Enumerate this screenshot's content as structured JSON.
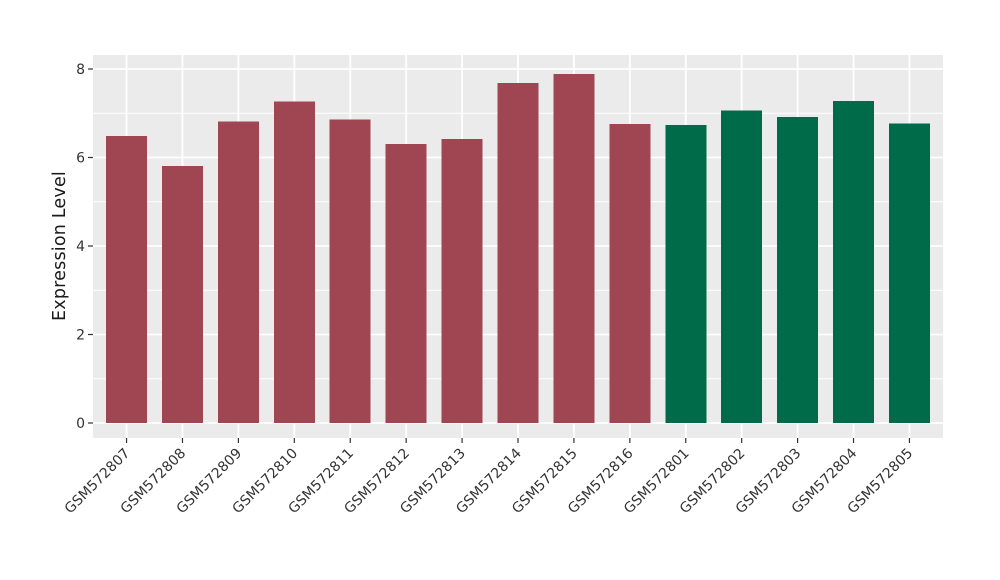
{
  "figure": {
    "background": "#FFFFFF"
  },
  "chart_data": {
    "type": "bar",
    "title": "",
    "xlabel": "",
    "ylabel": "Expression Level",
    "ylim": [
      0,
      8.3
    ],
    "yticks": [
      0,
      2,
      4,
      6,
      8
    ],
    "yticks_minor": [
      1,
      3,
      5,
      7
    ],
    "grid": true,
    "legend_position": "none",
    "panel_bg": "#EBEBEB",
    "grid_color": "#FFFFFF",
    "axis_text_color": "#333333",
    "tick_color": "#333333",
    "categories": [
      "GSM572807",
      "GSM572808",
      "GSM572809",
      "GSM572810",
      "GSM572811",
      "GSM572812",
      "GSM572813",
      "GSM572814",
      "GSM572815",
      "GSM572816",
      "GSM572801",
      "GSM572802",
      "GSM572803",
      "GSM572804",
      "GSM572805"
    ],
    "values": [
      6.49,
      5.81,
      6.81,
      7.26,
      6.86,
      6.31,
      6.42,
      7.68,
      7.89,
      6.76,
      6.73,
      7.06,
      6.91,
      7.28,
      6.77
    ],
    "bar_colors": [
      "#A04552",
      "#A04552",
      "#A04552",
      "#A04552",
      "#A04552",
      "#A04552",
      "#A04552",
      "#A04552",
      "#A04552",
      "#A04552",
      "#006B48",
      "#006B48",
      "#006B48",
      "#006B48",
      "#006B48"
    ]
  }
}
